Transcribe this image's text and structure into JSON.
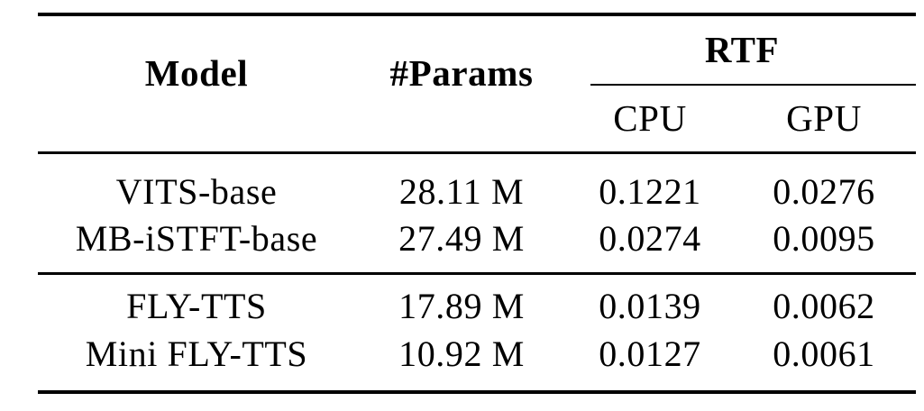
{
  "table": {
    "header": {
      "model": "Model",
      "params": "#Params",
      "rtf_group": "RTF",
      "cpu": "CPU",
      "gpu": "GPU"
    },
    "groups": [
      {
        "rows": [
          {
            "model": "VITS-base",
            "params": "28.11 M",
            "cpu": "0.1221",
            "gpu": "0.0276"
          },
          {
            "model": "MB-iSTFT-base",
            "params": "27.49 M",
            "cpu": "0.0274",
            "gpu": "0.0095"
          }
        ]
      },
      {
        "rows": [
          {
            "model": "FLY-TTS",
            "params": "17.89 M",
            "cpu": "0.0139",
            "gpu": "0.0062"
          },
          {
            "model": "Mini FLY-TTS",
            "params": "10.92 M",
            "cpu": "0.0127",
            "gpu": "0.0061"
          }
        ]
      }
    ]
  },
  "chart_data": {
    "type": "table",
    "title": "",
    "columns": [
      "Model",
      "#Params",
      "RTF CPU",
      "RTF GPU"
    ],
    "rows": [
      [
        "VITS-base",
        "28.11 M",
        0.1221,
        0.0276
      ],
      [
        "MB-iSTFT-base",
        "27.49 M",
        0.0274,
        0.0095
      ],
      [
        "FLY-TTS",
        "17.89 M",
        0.0139,
        0.0062
      ],
      [
        "Mini FLY-TTS",
        "10.92 M",
        0.0127,
        0.0061
      ]
    ]
  },
  "colors": {
    "text": "#000000",
    "rule": "#000000",
    "background": "#ffffff"
  }
}
